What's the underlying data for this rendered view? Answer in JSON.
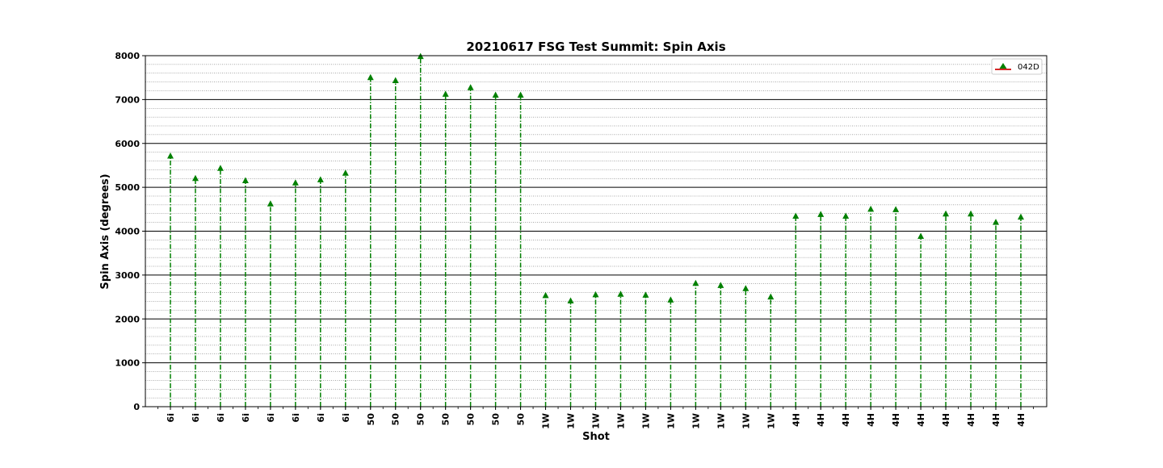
{
  "chart_data": {
    "type": "scatter",
    "title": "20210617 FSG Test Summit: Spin Axis",
    "xlabel": "Shot",
    "ylabel": "Spin Axis (degrees)",
    "ylim": [
      0,
      8000
    ],
    "yticks": [
      "0",
      "1000",
      "2000",
      "3000",
      "4000",
      "5000",
      "6000",
      "7000",
      "8000"
    ],
    "y_minor_step": 200,
    "grid": true,
    "marker": "triangle-up",
    "stem_style": "dash-dot",
    "legend": {
      "position": "top-right",
      "entries": [
        "042D"
      ]
    },
    "categories": [
      "6i",
      "6i",
      "6i",
      "6i",
      "6i",
      "6i",
      "6i",
      "6i",
      "50",
      "50",
      "50",
      "50",
      "50",
      "50",
      "50",
      "1W",
      "1W",
      "1W",
      "1W",
      "1W",
      "1W",
      "1W",
      "1W",
      "1W",
      "1W",
      "4H",
      "4H",
      "4H",
      "4H",
      "4H",
      "4H",
      "4H",
      "4H",
      "4H",
      "4H"
    ],
    "series": [
      {
        "name": "042D",
        "color": "#008000",
        "values": [
          5710,
          5200,
          5430,
          5150,
          4620,
          5100,
          5170,
          5320,
          7500,
          7430,
          7980,
          7120,
          7270,
          7100,
          7100,
          2530,
          2410,
          2550,
          2560,
          2540,
          2430,
          2810,
          2760,
          2690,
          2500,
          4340,
          4380,
          4340,
          4500,
          4490,
          3880,
          4390,
          4390,
          4200,
          4320
        ]
      }
    ]
  }
}
